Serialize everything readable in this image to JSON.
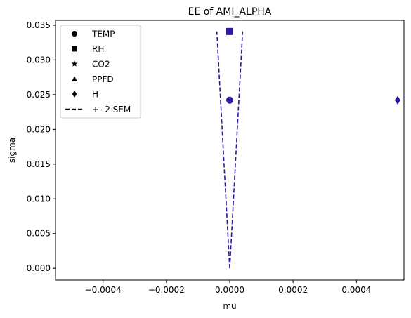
{
  "chart_data": {
    "type": "scatter",
    "title": "EE of AMI_ALPHA",
    "xlabel": "mu",
    "ylabel": "sigma",
    "xlim": [
      -0.00055,
      0.00055
    ],
    "ylim": [
      -0.0017,
      0.0357
    ],
    "x_ticks": [
      -0.0004,
      -0.0002,
      0.0,
      0.0002,
      0.0004
    ],
    "x_tick_labels": [
      "−0.0004",
      "−0.0002",
      "0.0000",
      "0.0002",
      "0.0004"
    ],
    "y_ticks": [
      0.0,
      0.005,
      0.01,
      0.015,
      0.02,
      0.025,
      0.03,
      0.035
    ],
    "y_tick_labels": [
      "0.000",
      "0.005",
      "0.010",
      "0.015",
      "0.020",
      "0.025",
      "0.030",
      "0.035"
    ],
    "grid": false,
    "legend_placement": "top-left",
    "marker_color": "#2a1a9e",
    "series": [
      {
        "name": "TEMP",
        "marker": "circle",
        "x": 0.0,
        "y": 0.0242
      },
      {
        "name": "RH",
        "marker": "square",
        "x": 0.0,
        "y": 0.0341
      },
      {
        "name": "CO2",
        "marker": "star",
        "x": null,
        "y": null
      },
      {
        "name": "PPFD",
        "marker": "triangle",
        "x": null,
        "y": null
      },
      {
        "name": "H",
        "marker": "diamond",
        "x": 0.00053,
        "y": 0.0242
      }
    ],
    "sem_lines": {
      "name": "+- 2 SEM",
      "style": "dashed",
      "left": {
        "x": [
          0.0,
          -4.07e-05
        ],
        "y": [
          0.0,
          0.0341
        ]
      },
      "right": {
        "x": [
          0.0,
          4.07e-05
        ],
        "y": [
          0.0,
          0.0341
        ]
      }
    }
  }
}
